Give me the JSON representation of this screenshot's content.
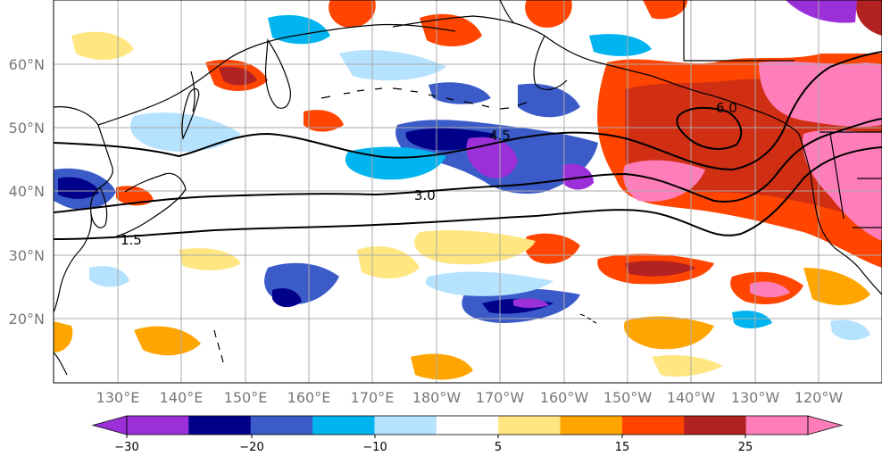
{
  "map": {
    "lat_labels": [
      "60°N",
      "50°N",
      "40°N",
      "30°N",
      "20°N"
    ],
    "lon_labels": [
      "130°E",
      "140°E",
      "150°E",
      "160°E",
      "170°E",
      "180°W",
      "170°W",
      "160°W",
      "150°W",
      "140°W",
      "130°W",
      "120°W"
    ],
    "contour_labels": [
      "6.0",
      "4.5",
      "3.0",
      "1.5"
    ],
    "extent": {
      "lon_min": 120,
      "lon_max": 250,
      "lat_min": 10,
      "lat_max": 70
    }
  },
  "colorbar": {
    "tick_labels": [
      "−30",
      "−20",
      "−10",
      "5",
      "15",
      "25"
    ],
    "levels": [
      -30,
      -25,
      -20,
      -15,
      -10,
      -5,
      5,
      10,
      15,
      20,
      25
    ],
    "colors": [
      "#9b30d9",
      "#00008b",
      "#3a5bc8",
      "#00b4f0",
      "#b5e2ff",
      "#ffffff",
      "#ffe680",
      "#ffa500",
      "#ff4500",
      "#b22222",
      "#ff7eb9"
    ],
    "under_color": "#9b30d9",
    "over_color": "#ff7eb9"
  }
}
